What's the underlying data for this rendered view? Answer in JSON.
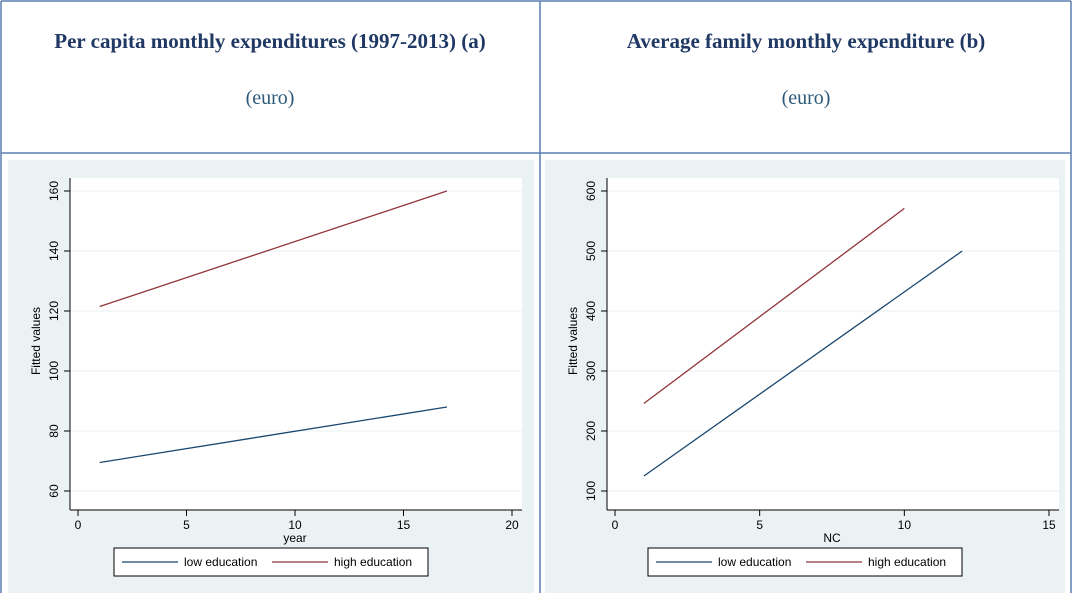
{
  "chart_data": [
    {
      "type": "line",
      "title": "Per capita monthly expenditures (1997-2013) (a)",
      "subtitle": "(euro)",
      "x_label": "year",
      "y_label": "Fitted values",
      "xlim": [
        0,
        20
      ],
      "xticks": [
        0,
        5,
        10,
        15,
        20
      ],
      "ylim": [
        60,
        160
      ],
      "yticks": [
        60,
        80,
        100,
        120,
        140,
        160
      ],
      "grid": true,
      "series": [
        {
          "name": "low education",
          "color": "#1a476f",
          "x": [
            1,
            17
          ],
          "values": [
            69.5,
            88
          ]
        },
        {
          "name": "high education",
          "color": "#90353b",
          "x": [
            1,
            17
          ],
          "values": [
            121.5,
            160
          ]
        }
      ]
    },
    {
      "type": "line",
      "title": "Average family monthly expenditure (b)",
      "subtitle": "(euro)",
      "x_label": "NC",
      "y_label": "Fitted values",
      "xlim": [
        0,
        15
      ],
      "xticks": [
        0,
        5,
        10,
        15
      ],
      "ylim": [
        100,
        600
      ],
      "yticks": [
        100,
        200,
        300,
        400,
        500,
        600
      ],
      "grid": true,
      "series": [
        {
          "name": "low education",
          "color": "#1a476f",
          "x": [
            1,
            12
          ],
          "values": [
            125,
            500
          ]
        },
        {
          "name": "high education",
          "color": "#90353b",
          "x": [
            1,
            10
          ],
          "values": [
            246,
            571
          ]
        }
      ]
    }
  ]
}
